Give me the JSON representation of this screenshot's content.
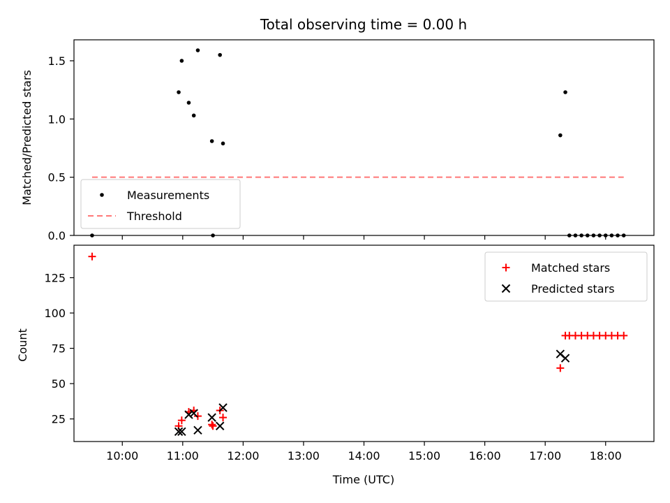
{
  "chart_data": [
    {
      "type": "scatter",
      "title": "Total observing time = 0.00 h",
      "xlabel": "",
      "ylabel": "Matched/Predicted stars",
      "xlim": [
        "09:12",
        "18:48"
      ],
      "ylim": [
        0,
        1.68
      ],
      "yticks": [
        "0.0",
        "0.5",
        "1.0",
        "1.5"
      ],
      "legend": "lower-left",
      "series": [
        {
          "name": "Measurements",
          "color": "#000000",
          "marker": "dot",
          "points": [
            [
              "09:30",
              0.0
            ],
            [
              "10:56",
              1.23
            ],
            [
              "10:59",
              1.5
            ],
            [
              "11:06",
              1.14
            ],
            [
              "11:11",
              1.03
            ],
            [
              "11:15",
              1.59
            ],
            [
              "11:29",
              0.81
            ],
            [
              "11:30",
              0.0
            ],
            [
              "11:37",
              1.55
            ],
            [
              "11:40",
              0.79
            ],
            [
              "17:15",
              0.86
            ],
            [
              "17:20",
              1.23
            ],
            [
              "17:24",
              0.0
            ],
            [
              "17:30",
              0.0
            ],
            [
              "17:36",
              0.0
            ],
            [
              "17:42",
              0.0
            ],
            [
              "17:48",
              0.0
            ],
            [
              "17:54",
              0.0
            ],
            [
              "18:00",
              0.0
            ],
            [
              "18:06",
              0.0
            ],
            [
              "18:12",
              0.0
            ],
            [
              "18:18",
              0.0
            ]
          ]
        },
        {
          "name": "Threshold",
          "color": "#ff7777",
          "marker": "dashed-line",
          "points": [
            [
              "09:30",
              0.5
            ],
            [
              "18:18",
              0.5
            ]
          ]
        }
      ]
    },
    {
      "type": "scatter",
      "title": "",
      "xlabel": "Time (UTC)",
      "ylabel": "Count",
      "xlim": [
        "09:12",
        "18:48"
      ],
      "ylim": [
        9,
        148
      ],
      "xticks": [
        "10:00",
        "11:00",
        "12:00",
        "13:00",
        "14:00",
        "15:00",
        "16:00",
        "17:00",
        "18:00"
      ],
      "yticks": [
        "25",
        "50",
        "75",
        "100",
        "125"
      ],
      "legend": "top-right",
      "series": [
        {
          "name": "Matched stars",
          "color": "#ff0000",
          "marker": "plus",
          "points": [
            [
              "09:30",
              140
            ],
            [
              "10:56",
              20
            ],
            [
              "10:59",
              24
            ],
            [
              "11:06",
              30
            ],
            [
              "11:11",
              31
            ],
            [
              "11:15",
              27
            ],
            [
              "11:29",
              21
            ],
            [
              "11:30",
              20
            ],
            [
              "11:37",
              31
            ],
            [
              "11:40",
              26
            ],
            [
              "17:15",
              61
            ],
            [
              "17:20",
              84
            ],
            [
              "17:24",
              84
            ],
            [
              "17:30",
              84
            ],
            [
              "17:36",
              84
            ],
            [
              "17:42",
              84
            ],
            [
              "17:48",
              84
            ],
            [
              "17:54",
              84
            ],
            [
              "18:00",
              84
            ],
            [
              "18:06",
              84
            ],
            [
              "18:12",
              84
            ],
            [
              "18:18",
              84
            ]
          ]
        },
        {
          "name": "Predicted stars",
          "color": "#000000",
          "marker": "x",
          "points": [
            [
              "10:56",
              16
            ],
            [
              "10:59",
              16
            ],
            [
              "11:06",
              28
            ],
            [
              "11:11",
              29
            ],
            [
              "11:15",
              17
            ],
            [
              "11:29",
              26
            ],
            [
              "11:37",
              20
            ],
            [
              "11:40",
              33
            ],
            [
              "17:15",
              71
            ],
            [
              "17:20",
              68
            ]
          ]
        }
      ]
    }
  ]
}
